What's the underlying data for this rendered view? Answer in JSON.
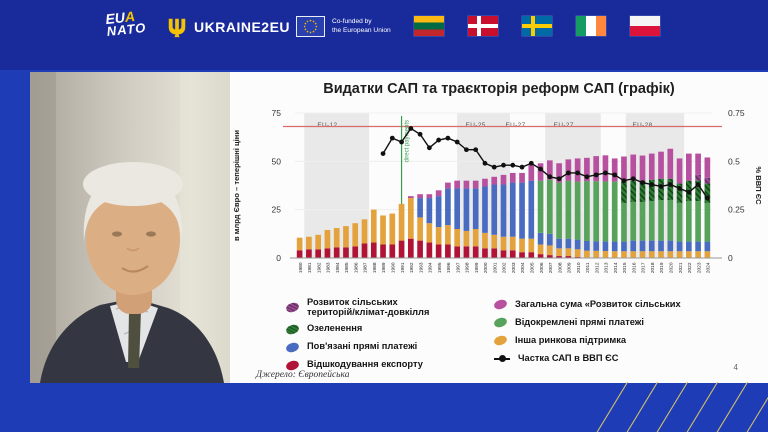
{
  "banner": {
    "eua_nato": {
      "part1": "EU",
      "part2": "A",
      "line2": "NATO"
    },
    "ukraine2eu": "UKRAINE2EU",
    "cofunded_line1": "Co-funded by",
    "cofunded_line2": "the European Union",
    "flags": [
      "lithuania",
      "denmark",
      "sweden",
      "ireland",
      "poland"
    ]
  },
  "slide": {
    "title": "Видатки САП та траєкторія реформ САП (графік)",
    "source": "Джерело: Європейська",
    "page_number": "4",
    "legend": {
      "col1": [
        {
          "label_line1": "Розвиток сільських",
          "label_line2": "територій/клімат-довкілля",
          "color": "#96498e",
          "hatch": true
        },
        {
          "label_line1": "Озеленення",
          "color": "#2e7d35",
          "hatch": true
        },
        {
          "label_line1": "Пов'язані прямі платежі",
          "color": "#4a6cc0"
        },
        {
          "label_line1": "Відшкодування експорту",
          "color": "#b01335"
        }
      ],
      "col2": [
        {
          "label_line1": "Загальна сума «Розвиток сільських",
          "color": "#b6509f"
        },
        {
          "label_line1": "Відокремлені прямі платежі",
          "color": "#57a35c"
        },
        {
          "label_line1": "Інша ринкова підтримка",
          "color": "#e3a23c"
        },
        {
          "label_line1": "Частка САП в ВВП ЄС",
          "marker": "line"
        }
      ]
    }
  },
  "chart_data": {
    "type": "bar",
    "subtype": "stacked-bars-with-line",
    "title": "Видатки САП та траєкторія реформ САП (графік)",
    "years": [
      1980,
      1981,
      1982,
      1983,
      1984,
      1985,
      1986,
      1987,
      1988,
      1989,
      1990,
      1991,
      1992,
      1993,
      1994,
      1995,
      1996,
      1997,
      1998,
      1999,
      2000,
      2001,
      2002,
      2003,
      2004,
      2005,
      2006,
      2007,
      2008,
      2009,
      2010,
      2011,
      2012,
      2013,
      2014,
      2015,
      2016,
      2017,
      2018,
      2019,
      2020,
      2021,
      2022,
      2023,
      2024
    ],
    "series": [
      {
        "name": "Відшкодування експорту",
        "color": "#b01335",
        "values": [
          4,
          4.5,
          4.5,
          5,
          5.5,
          5.5,
          6,
          7.5,
          8,
          7,
          7,
          9,
          10,
          9,
          8,
          7,
          7,
          6,
          6,
          6,
          5,
          5,
          4,
          4,
          3,
          3,
          2,
          1.5,
          1,
          1,
          0.5,
          0.3,
          0.2,
          0.1,
          0,
          0,
          0,
          0,
          0,
          0,
          0,
          0,
          0,
          0,
          0
        ]
      },
      {
        "name": "Інша ринкова підтримка",
        "color": "#e3a23c",
        "values": [
          6.5,
          6.5,
          7.5,
          9.5,
          10,
          11,
          12,
          12.5,
          17,
          15,
          16,
          19,
          21,
          12,
          10,
          9,
          10,
          9,
          8,
          9,
          8,
          7,
          7,
          7,
          7,
          7,
          5,
          5,
          4,
          4,
          4,
          3.5,
          3.5,
          3.5,
          3.5,
          3.5,
          3.5,
          3.5,
          3.5,
          3.5,
          3.5,
          3.5,
          3.5,
          3.5,
          3.5
        ]
      },
      {
        "name": "Пов'язані прямі платежі",
        "color": "#4a6cc0",
        "values": [
          0,
          0,
          0,
          0,
          0,
          0,
          0,
          0,
          0,
          0,
          0,
          0,
          0,
          10,
          13,
          16,
          19,
          21,
          22,
          21,
          24,
          26,
          27,
          28,
          29,
          30,
          6,
          6,
          5,
          5,
          5,
          5,
          5,
          5,
          5,
          5,
          5.5,
          5.5,
          5.5,
          5.5,
          5.5,
          5,
          5,
          5,
          5
        ]
      },
      {
        "name": "Відокремлені прямі платежі",
        "color": "#57a35c",
        "values": [
          0,
          0,
          0,
          0,
          0,
          0,
          0,
          0,
          0,
          0,
          0,
          0,
          0,
          0,
          0,
          0,
          0,
          0,
          0,
          0,
          0,
          0,
          0,
          0,
          0,
          0,
          27,
          28,
          29,
          30,
          30,
          31,
          31,
          31,
          31,
          20,
          20,
          20,
          20.5,
          21,
          21,
          20,
          21,
          21,
          20
        ]
      },
      {
        "name": "Озеленення",
        "color": "#2e7d35",
        "hatch": true,
        "hatch_color": "#14421a",
        "values": [
          0,
          0,
          0,
          0,
          0,
          0,
          0,
          0,
          0,
          0,
          0,
          0,
          0,
          0,
          0,
          0,
          0,
          0,
          0,
          0,
          0,
          0,
          0,
          0,
          0,
          0,
          0,
          0,
          0,
          0,
          0,
          0,
          0,
          0,
          0,
          11,
          11,
          11,
          11,
          11,
          11,
          10,
          10.5,
          10.5,
          10
        ]
      },
      {
        "name": "Розвиток сільських територій/клімат-довкілля",
        "color": "#96498e",
        "hatch": true,
        "hatch_color": "#5e2f5e",
        "values": [
          0,
          0,
          0,
          0,
          0,
          0,
          0,
          0,
          0,
          0,
          0,
          0,
          0,
          0,
          0,
          0,
          0,
          0,
          0,
          0,
          0,
          0,
          0,
          0,
          0,
          0,
          0,
          0,
          0,
          0,
          0,
          0,
          0,
          0,
          0,
          0,
          0,
          0,
          0,
          0,
          0,
          0,
          0,
          3,
          3
        ]
      },
      {
        "name": "Загальна сума «Розвиток сільських",
        "color": "#b6509f",
        "values": [
          0,
          0,
          0,
          0,
          0,
          0,
          0,
          0,
          0,
          0,
          0,
          0,
          1,
          2,
          2,
          3,
          3,
          4,
          4,
          4,
          4,
          4,
          5,
          5,
          5,
          8,
          9,
          10,
          10,
          11,
          12,
          12,
          13,
          13.5,
          12,
          13,
          13.5,
          13,
          13.5,
          14,
          15.5,
          13,
          14,
          11,
          10.5
        ]
      }
    ],
    "line_series": {
      "name": "Частка САП в ВВП ЄС",
      "color": "#111111",
      "start_year": 1989,
      "values": [
        0.54,
        0.62,
        0.6,
        0.67,
        0.64,
        0.57,
        0.61,
        0.62,
        0.6,
        0.56,
        0.56,
        0.49,
        0.47,
        0.48,
        0.48,
        0.47,
        0.49,
        0.46,
        0.42,
        0.41,
        0.44,
        0.44,
        0.42,
        0.43,
        0.44,
        0.43,
        0.4,
        0.41,
        0.39,
        0.38,
        0.37,
        0.38,
        0.36,
        0.34,
        0.38,
        0.31
      ]
    },
    "left_axis": {
      "title": "в млрд Євро – теперішні ціни",
      "ticks": [
        0,
        25,
        50,
        75
      ],
      "max": 75
    },
    "right_axis": {
      "title": "% ВВП ЄС",
      "ticks": [
        0,
        0.25,
        0.5,
        0.75
      ],
      "max": 0.75
    },
    "reference_line": {
      "value": 0.68,
      "color": "#d96a6a"
    },
    "event_line": {
      "year": 1991,
      "label": "direct payments",
      "color": "#3a9e4f"
    },
    "era_bands": [
      {
        "from": 1981,
        "to": 1988
      },
      {
        "from": 1997.5,
        "to": 2003.2
      },
      {
        "from": 2007,
        "to": 2013
      },
      {
        "from": 2015.7,
        "to": 2022
      }
    ],
    "era_labels": [
      {
        "text": "EU-12",
        "year": 1983.5
      },
      {
        "text": "EU-25",
        "year": 1999.5
      },
      {
        "text": "EU-27",
        "year": 2003.8
      },
      {
        "text": "EU-27",
        "year": 2009
      },
      {
        "text": "EU-28",
        "year": 2017.5
      }
    ],
    "grid": true,
    "legend_position": "bottom"
  }
}
